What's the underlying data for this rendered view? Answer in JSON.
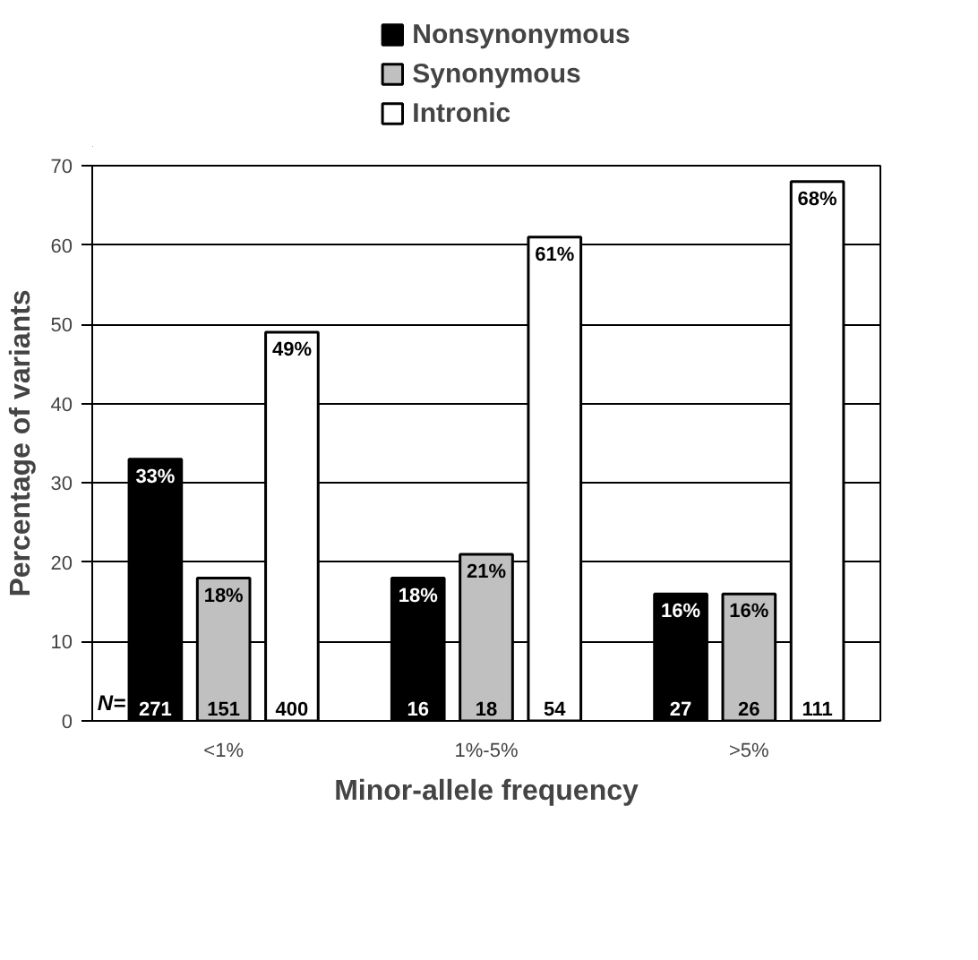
{
  "chart_data": {
    "type": "bar",
    "xlabel": "Minor-allele frequency",
    "ylabel": "Percentage of variants",
    "categories": [
      "<1%",
      "1%-5%",
      ">5%"
    ],
    "series": [
      {
        "name": "Nonsynonymous",
        "color": "#000000",
        "values": [
          33,
          18,
          16
        ],
        "value_labels": [
          "33%",
          "18%",
          "16%"
        ]
      },
      {
        "name": "Synonymous",
        "color": "#c0c0c0",
        "values": [
          18,
          21,
          16
        ],
        "value_labels": [
          "18%",
          "21%",
          "16%"
        ]
      },
      {
        "name": "Intronic",
        "color": "#ffffff",
        "values": [
          49,
          61,
          68
        ],
        "value_labels": [
          "49%",
          "61%",
          "68%"
        ]
      }
    ],
    "ylim": [
      0,
      70
    ],
    "yticks": [
      0,
      10,
      20,
      30,
      40,
      50,
      60,
      70
    ],
    "grid": "y",
    "legend": "top",
    "annotations": [
      "N=",
      {
        "text": "271",
        "x": "<1%",
        "y": 0
      },
      {
        "text": "151",
        "x": "<1%",
        "y": 0
      },
      {
        "text": "400",
        "x": "<1%",
        "y": 0
      },
      {
        "text": "16",
        "x": "1%-5%",
        "y": 0
      },
      {
        "text": "18",
        "x": "1%-5%",
        "y": 0
      },
      {
        "text": "54",
        "x": "1%-5%",
        "y": 0
      },
      {
        "text": "27",
        "x": ">5%",
        "y": 0
      },
      {
        "text": "26",
        "x": ">5%",
        "y": 0
      },
      {
        "text": "111",
        "x": ">5%",
        "y": 0
      }
    ]
  }
}
